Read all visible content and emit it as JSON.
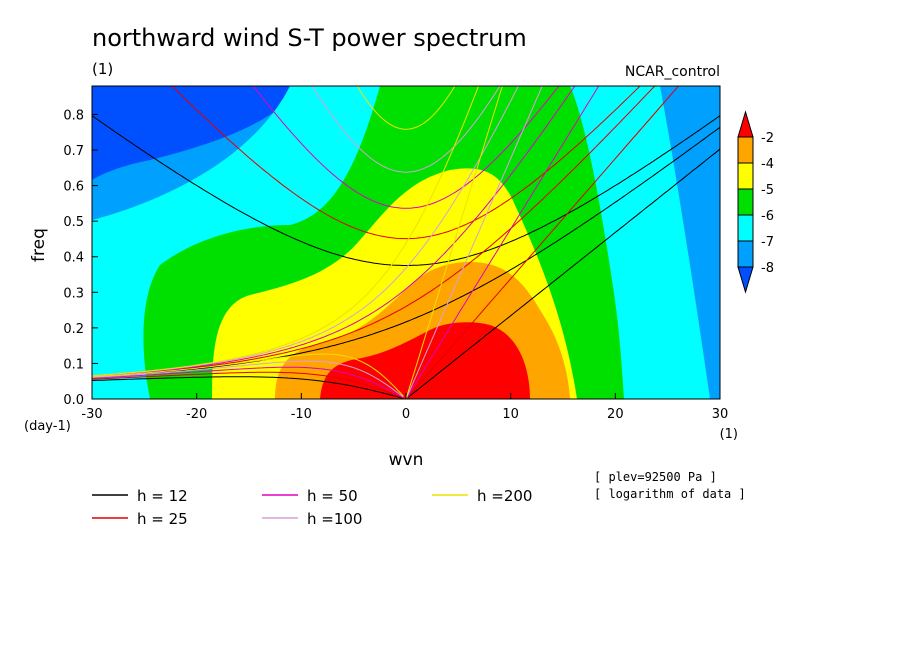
{
  "chart_data": {
    "type": "heatmap",
    "title": "northward wind S-T power spectrum",
    "subtitle_left": "(1)",
    "subtitle_right": "NCAR_control",
    "xlabel": "wvn",
    "ylabel": "freq",
    "x_unit": "(1)",
    "y_unit": "(day-1)",
    "xlim": [
      -30,
      30
    ],
    "ylim": [
      0,
      0.88
    ],
    "x_ticks": [
      "-30",
      "-20",
      "-10",
      "0",
      "10",
      "20",
      "30"
    ],
    "y_ticks": [
      "0.0",
      "0.1",
      "0.2",
      "0.3",
      "0.4",
      "0.5",
      "0.6",
      "0.7",
      "0.8"
    ],
    "colorbar": {
      "levels": [
        "-2",
        "-4",
        "-5",
        "-6",
        "-7",
        "-8"
      ],
      "colors": [
        "#ff0000",
        "#ffa500",
        "#ffff00",
        "#00e000",
        "#00ffff",
        "#00a0ff",
        "#0050ff"
      ]
    },
    "contour_bands": [
      {
        "level": "< -8",
        "color": "#0050ff"
      },
      {
        "level": "-8 to -7",
        "color": "#00a0ff"
      },
      {
        "level": "-7 to -6",
        "color": "#00ffff"
      },
      {
        "level": "-6 to -5",
        "color": "#00e000"
      },
      {
        "level": "-5 to -4",
        "color": "#ffff00"
      },
      {
        "level": "-4 to -2",
        "color": "#ffa500"
      },
      {
        "level": "> -2",
        "color": "#ff0000"
      }
    ],
    "dispersion_curves": [
      {
        "label": "h = 12",
        "h": 12,
        "color": "#000000"
      },
      {
        "label": "h = 25",
        "h": 25,
        "color": "#e00000"
      },
      {
        "label": "h = 50",
        "h": 50,
        "color": "#e000c0"
      },
      {
        "label": "h =100",
        "h": 100,
        "color": "#d8a0d8"
      },
      {
        "label": "h =200",
        "h": 200,
        "color": "#f0e000"
      }
    ],
    "annotations": [
      "[ plev=92500 Pa ]",
      "[ logarithm of data ]"
    ]
  }
}
